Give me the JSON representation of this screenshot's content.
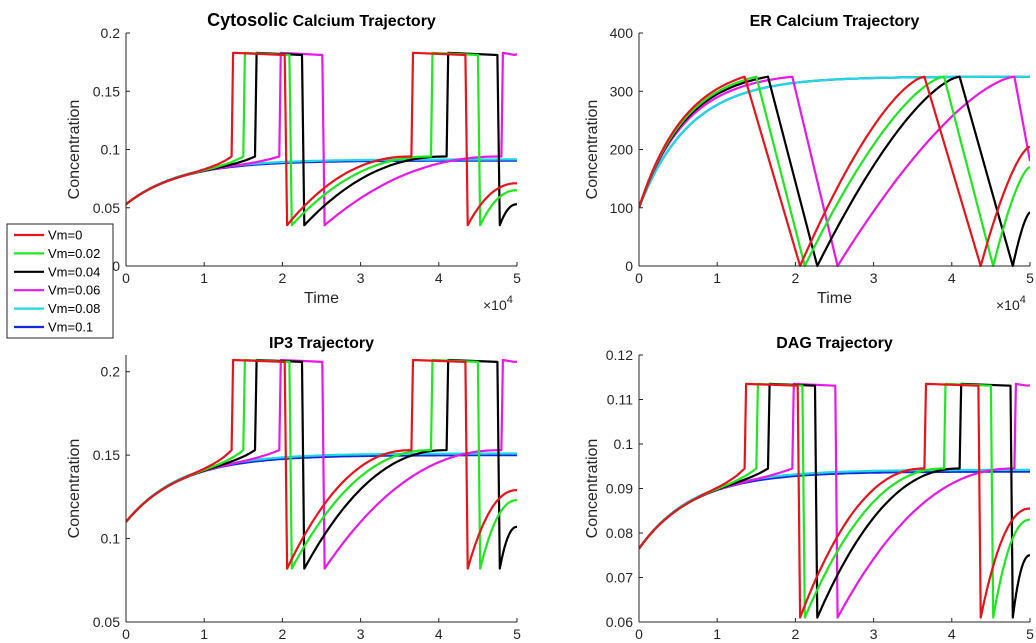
{
  "figure": {
    "x_exponent_label": "×10",
    "x_exponent_power": "4"
  },
  "legend": [
    "Vm=0",
    "Vm=0.02",
    "Vm=0.04",
    "Vm=0.06",
    "Vm=0.08",
    "Vm=0.1"
  ],
  "colors": {
    "Vm=0": "#e8141c",
    "Vm=0.02": "#1ee81e",
    "Vm=0.04": "#000000",
    "Vm=0.06": "#e818e8",
    "Vm=0.08": "#20d8e0",
    "Vm=0.1": "#1428e0"
  },
  "chart_data": [
    {
      "type": "line",
      "title": "Cytosolic Calcium Trajectory",
      "title_parts": [
        "Cytosolic",
        "Calcium Trajectory"
      ],
      "xlabel": "Time",
      "ylabel": "Concentration",
      "xlim": [
        0,
        50000
      ],
      "ylim": [
        0,
        0.2
      ],
      "xticks": [
        "0",
        "1",
        "2",
        "3",
        "4",
        "5"
      ],
      "yticks": [
        "0",
        "0.05",
        "0.1",
        "0.15",
        "0.2"
      ],
      "base": 0.053,
      "plateau": 0.0905,
      "pre_spike": 0.094,
      "spike_max": 0.183,
      "spike_min": 0.035,
      "series": [
        {
          "name": "Vm=0",
          "spike_times": [
            [
              13500,
              20600
            ],
            [
              36500,
              43700
            ]
          ],
          "end_value": 0.071
        },
        {
          "name": "Vm=0.02",
          "spike_times": [
            [
              15000,
              21200
            ],
            [
              39000,
              45300
            ]
          ],
          "end_value": 0.065
        },
        {
          "name": "Vm=0.04",
          "spike_times": [
            [
              16500,
              22800
            ],
            [
              41000,
              47800
            ]
          ],
          "end_value": 0.053
        },
        {
          "name": "Vm=0.06",
          "spike_times": [
            [
              19600,
              25400
            ],
            [
              48000,
              50000
            ]
          ],
          "end_value": 0.182
        },
        {
          "name": "Vm=0.08",
          "plateau": 0.0915
        },
        {
          "name": "Vm=0.1",
          "plateau": 0.0905
        }
      ]
    },
    {
      "type": "line",
      "title": "ER Calcium Trajectory",
      "xlabel": "Time",
      "ylabel": "Concentration",
      "xlim": [
        0,
        50000
      ],
      "ylim": [
        0,
        400
      ],
      "xticks": [
        "0",
        "1",
        "2",
        "3",
        "4",
        "5"
      ],
      "yticks": [
        "0",
        "100",
        "200",
        "300",
        "400"
      ],
      "base": 100,
      "plateau": 325,
      "spike_max": 325,
      "spike_min": 0,
      "series": [
        {
          "name": "Vm=0",
          "spike_times": [
            [
              13500,
              20600
            ],
            [
              36500,
              43700
            ]
          ],
          "end_value": 205
        },
        {
          "name": "Vm=0.02",
          "spike_times": [
            [
              15000,
              21200
            ],
            [
              39000,
              45300
            ]
          ],
          "end_value": 170
        },
        {
          "name": "Vm=0.04",
          "spike_times": [
            [
              16500,
              22800
            ],
            [
              41000,
              47800
            ]
          ],
          "end_value": 92
        },
        {
          "name": "Vm=0.06",
          "spike_times": [
            [
              19600,
              25400
            ],
            [
              48000,
              50000
            ]
          ],
          "end_value": 180
        },
        {
          "name": "Vm=0.08",
          "plateau": 325
        },
        {
          "name": "Vm=0.1",
          "plateau": 325
        }
      ]
    },
    {
      "type": "line",
      "title": "IP3 Trajectory",
      "xlabel": "Time",
      "ylabel": "Concentration",
      "xlim": [
        0,
        50000
      ],
      "ylim": [
        0.05,
        0.21
      ],
      "xticks": [
        "0",
        "1",
        "2",
        "3",
        "4",
        "5"
      ],
      "yticks": [
        "0.05",
        "0.1",
        "0.15",
        "0.2"
      ],
      "base": 0.11,
      "plateau": 0.15,
      "pre_spike": 0.153,
      "spike_max": 0.207,
      "spike_min": 0.082,
      "series": [
        {
          "name": "Vm=0",
          "spike_times": [
            [
              13500,
              20600
            ],
            [
              36500,
              43700
            ]
          ],
          "end_value": 0.129
        },
        {
          "name": "Vm=0.02",
          "spike_times": [
            [
              15000,
              21200
            ],
            [
              39000,
              45300
            ]
          ],
          "end_value": 0.123
        },
        {
          "name": "Vm=0.04",
          "spike_times": [
            [
              16500,
              22800
            ],
            [
              41000,
              47800
            ]
          ],
          "end_value": 0.107
        },
        {
          "name": "Vm=0.06",
          "spike_times": [
            [
              19600,
              25400
            ],
            [
              48000,
              50000
            ]
          ],
          "end_value": 0.206
        },
        {
          "name": "Vm=0.08",
          "plateau": 0.151
        },
        {
          "name": "Vm=0.1",
          "plateau": 0.15
        }
      ]
    },
    {
      "type": "line",
      "title": "DAG Trajectory",
      "xlabel": "Time",
      "ylabel": "Concentration",
      "xlim": [
        0,
        50000
      ],
      "ylim": [
        0.06,
        0.12
      ],
      "xticks": [
        "0",
        "1",
        "2",
        "3",
        "4",
        "5"
      ],
      "yticks": [
        "0.06",
        "0.07",
        "0.08",
        "0.09",
        "0.1",
        "0.11",
        "0.12"
      ],
      "base": 0.0765,
      "plateau": 0.0938,
      "pre_spike": 0.0945,
      "spike_max": 0.1135,
      "spike_min": 0.061,
      "series": [
        {
          "name": "Vm=0",
          "spike_times": [
            [
              13500,
              20600
            ],
            [
              36500,
              43700
            ]
          ],
          "end_value": 0.0855
        },
        {
          "name": "Vm=0.02",
          "spike_times": [
            [
              15000,
              21200
            ],
            [
              39000,
              45300
            ]
          ],
          "end_value": 0.083
        },
        {
          "name": "Vm=0.04",
          "spike_times": [
            [
              16500,
              22800
            ],
            [
              41000,
              47800
            ]
          ],
          "end_value": 0.075
        },
        {
          "name": "Vm=0.06",
          "spike_times": [
            [
              19600,
              25400
            ],
            [
              48000,
              50000
            ]
          ],
          "end_value": 0.1132
        },
        {
          "name": "Vm=0.08",
          "plateau": 0.0942
        },
        {
          "name": "Vm=0.1",
          "plateau": 0.0938
        }
      ]
    }
  ]
}
